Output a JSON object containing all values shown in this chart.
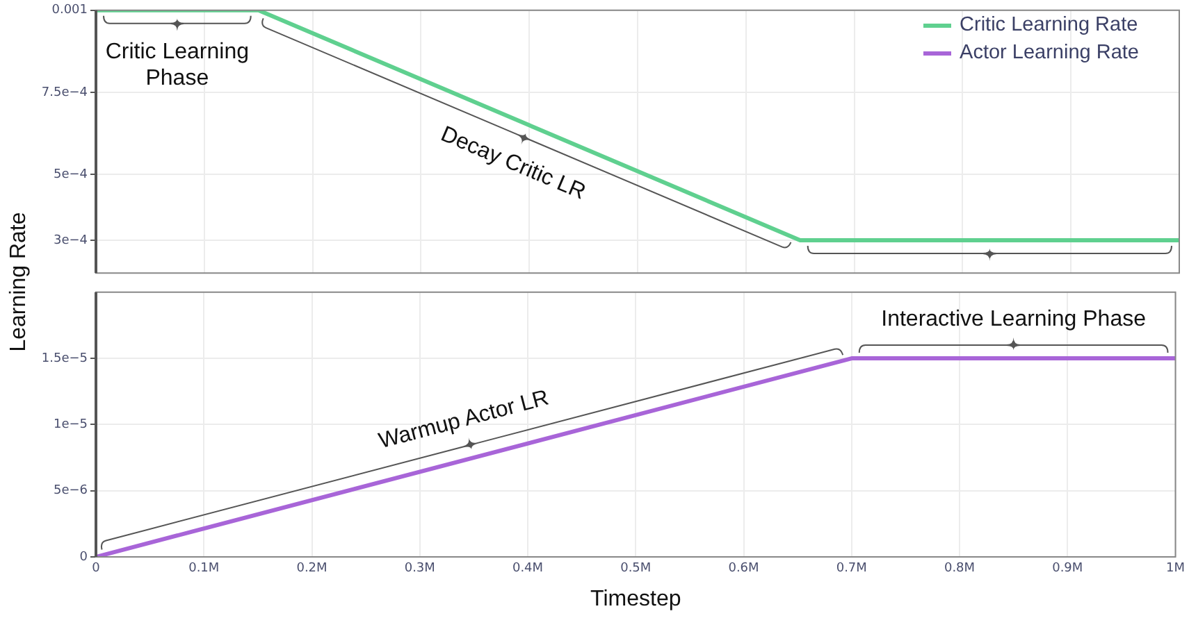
{
  "chart_data": [
    {
      "type": "line",
      "ylabel": "Learning Rate",
      "legend": "top right",
      "tick_labels": "y",
      "grid": true,
      "marker": "none",
      "line_style": "solid",
      "xlim": [
        0,
        1000000
      ],
      "xticks": [
        {
          "value": 100000,
          "label": null
        },
        {
          "value": 200000,
          "label": null
        },
        {
          "value": 300000,
          "label": null
        },
        {
          "value": 400000,
          "label": null
        },
        {
          "value": 500000,
          "label": null
        },
        {
          "value": 600000,
          "label": null
        },
        {
          "value": 700000,
          "label": null
        },
        {
          "value": 800000,
          "label": null
        },
        {
          "value": 900000,
          "label": null
        }
      ],
      "ylim": [
        0.0002,
        0.001
      ],
      "yticks": [
        {
          "value": 0.0003,
          "label": "3e−4"
        },
        {
          "value": 0.0005,
          "label": "5e−4"
        },
        {
          "value": 0.00075,
          "label": "7.5e−4"
        },
        0.001
      ],
      "series": [
        {
          "name": "Critic Learning Rate",
          "color": "#5fd08f",
          "x": [
            0,
            150000,
            650000,
            1000000
          ],
          "values": [
            0.001,
            0.001,
            0.0003,
            0.0003
          ]
        }
      ],
      "annotations": [
        "Critic Learning Phase",
        "Decay Critic LR"
      ]
    },
    {
      "type": "line",
      "xlabel": "Timestep",
      "legend": "top right",
      "grid": true,
      "marker": "none",
      "line_style": "solid",
      "xlim": [
        0,
        1000000
      ],
      "xticks": [
        0,
        {
          "value": 100000,
          "label": "0.1M"
        },
        {
          "value": 200000,
          "label": "0.2M"
        },
        {
          "value": 300000,
          "label": "0.3M"
        },
        {
          "value": 400000,
          "label": "0.4M"
        },
        {
          "value": 500000,
          "label": "0.5M"
        },
        {
          "value": 600000,
          "label": "0.6M"
        },
        {
          "value": 700000,
          "label": "0.7M"
        },
        {
          "value": 800000,
          "label": "0.8M"
        },
        {
          "value": 900000,
          "label": "0.9M"
        },
        {
          "value": 1000000,
          "label": "1M"
        }
      ],
      "ylim": [
        0,
        2e-05
      ],
      "yticks": [
        0,
        {
          "value": 5e-06,
          "label": "5e−6"
        },
        {
          "value": 1e-05,
          "label": "1e−5"
        },
        {
          "value": 1.5e-05,
          "label": "1.5e−5"
        }
      ],
      "series": [
        {
          "name": "Actor Learning Rate",
          "color": "#a865d8",
          "x": [
            0,
            700000,
            1000000
          ],
          "values": [
            0,
            1.5e-05,
            1.5e-05
          ]
        }
      ],
      "annotations": [
        "Warmup Actor LR",
        "Interactive Learning Phase"
      ]
    }
  ]
}
